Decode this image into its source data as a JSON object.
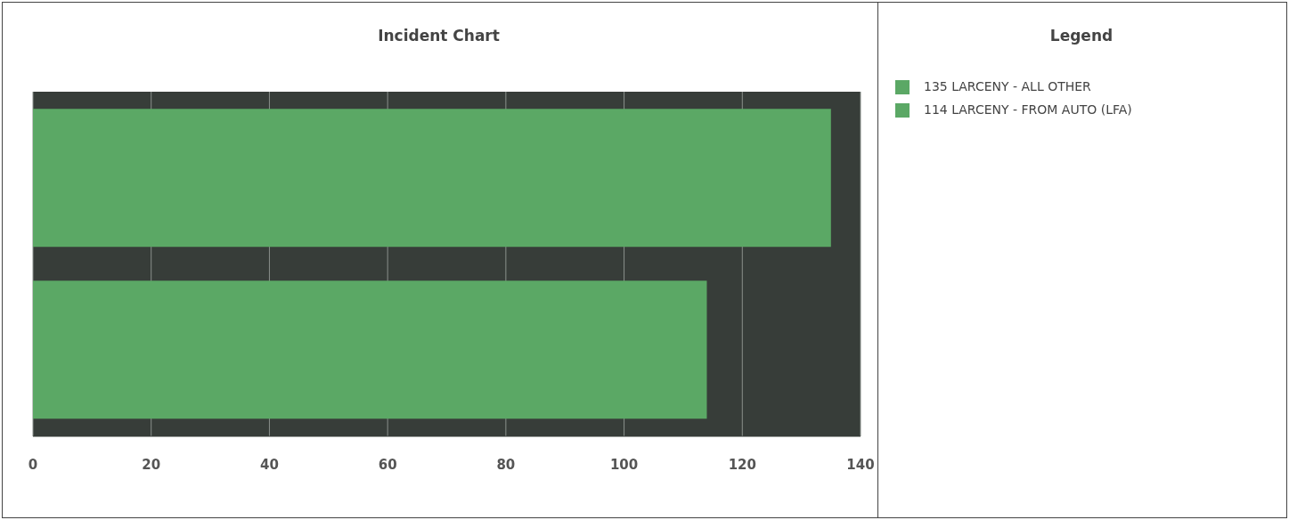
{
  "chart_data": {
    "type": "bar",
    "orientation": "horizontal",
    "title": "Incident Chart",
    "legend_title": "Legend",
    "categories": [
      null
    ],
    "series": [
      {
        "name": "135 LARCENY - ALL OTHER",
        "color": "#5ba865",
        "values": [
          135
        ]
      },
      {
        "name": "114 LARCENY - FROM AUTO (LFA)",
        "color": "#5ba865",
        "values": [
          114
        ]
      }
    ],
    "xlim": [
      0,
      140
    ],
    "xticks": [
      0,
      20,
      40,
      60,
      80,
      100,
      120,
      140
    ],
    "grid": "x",
    "legend": "right",
    "tick_labels": "x"
  }
}
